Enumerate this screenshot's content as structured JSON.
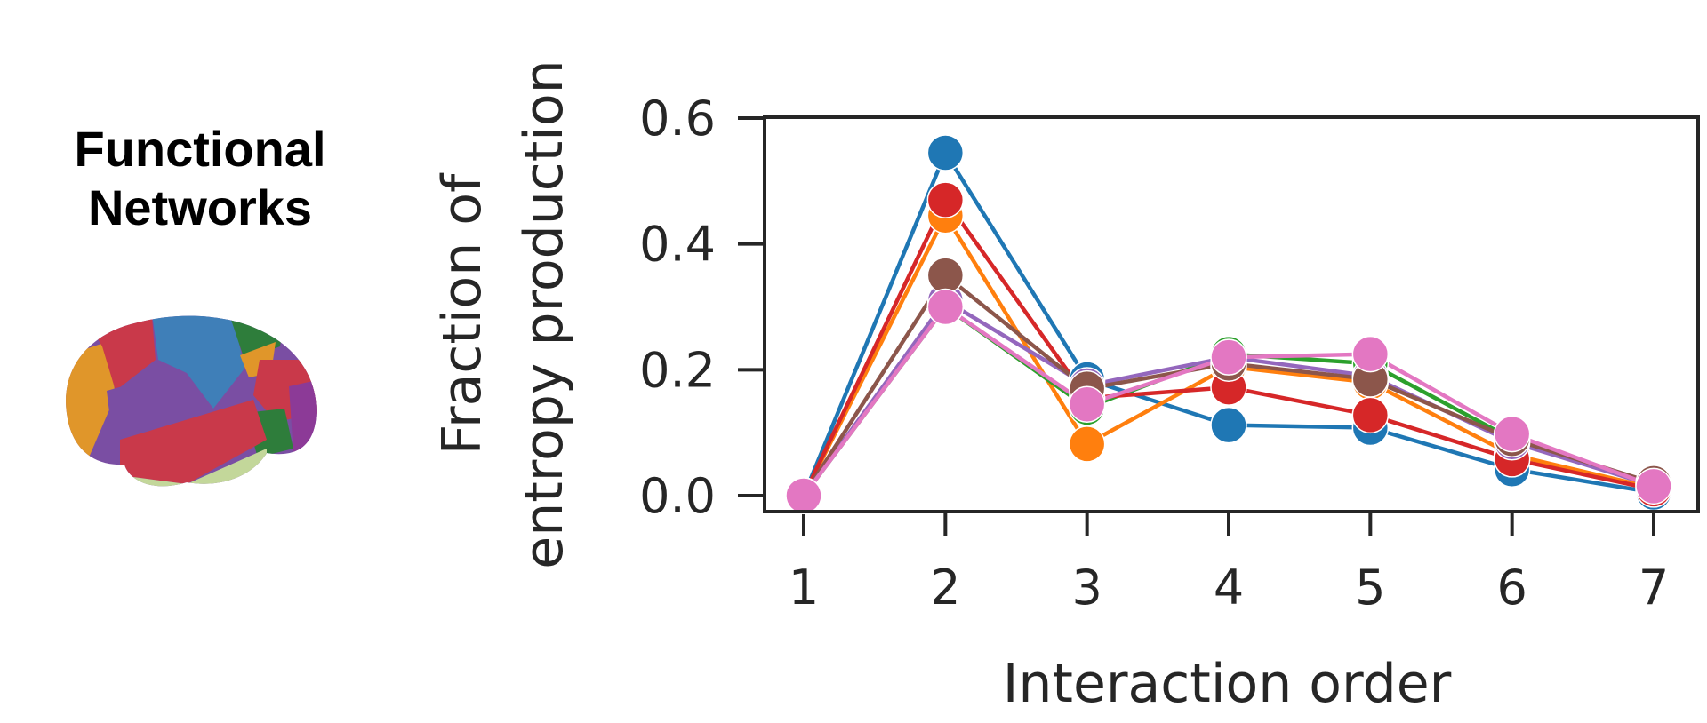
{
  "panel": {
    "title_line1": "Functional",
    "title_line2": "Networks",
    "brain_colors": [
      "#3f7fb8",
      "#7a4ea3",
      "#c9394a",
      "#e0962a",
      "#2e7d3b",
      "#8c3a97",
      "#c3d79a"
    ]
  },
  "chart_data": {
    "type": "line",
    "title": "",
    "xlabel": "Interaction order",
    "ylabel_line1": "Fraction of",
    "ylabel_line2": "entropy production",
    "x": [
      1,
      2,
      3,
      4,
      5,
      6,
      7
    ],
    "xticks": [
      "1",
      "2",
      "3",
      "4",
      "5",
      "6",
      "7"
    ],
    "yticks": [
      "0.0",
      "0.2",
      "0.4",
      "0.6"
    ],
    "ylim": [
      -0.03,
      0.6
    ],
    "grid": false,
    "legend": "none",
    "series": [
      {
        "color": "#1f77b4",
        "values": [
          0.0,
          0.545,
          0.185,
          0.112,
          0.108,
          0.042,
          0.005
        ]
      },
      {
        "color": "#ff7f0e",
        "values": [
          0.0,
          0.445,
          0.082,
          0.205,
          0.18,
          0.065,
          0.012
        ]
      },
      {
        "color": "#2ca02c",
        "values": [
          0.0,
          0.3,
          0.14,
          0.225,
          0.21,
          0.09,
          0.018
        ]
      },
      {
        "color": "#d62728",
        "values": [
          0.0,
          0.47,
          0.155,
          0.172,
          0.128,
          0.058,
          0.01
        ]
      },
      {
        "color": "#9467bd",
        "values": [
          0.0,
          0.31,
          0.175,
          0.22,
          0.19,
          0.085,
          0.016
        ]
      },
      {
        "color": "#8c564b",
        "values": [
          0.0,
          0.35,
          0.17,
          0.21,
          0.185,
          0.09,
          0.02
        ]
      },
      {
        "color": "#e377c2",
        "values": [
          0.0,
          0.3,
          0.145,
          0.22,
          0.225,
          0.098,
          0.015
        ]
      }
    ]
  }
}
